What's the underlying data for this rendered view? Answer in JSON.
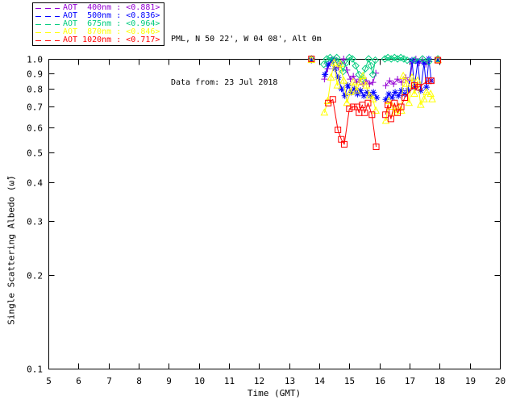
{
  "page": {
    "background": "#FFFFFF"
  },
  "header": {
    "station_line": "PML, N 50 22', W 04 08', Alt 0m",
    "date_line": "Data from: 23 Jul 2018"
  },
  "legend": {
    "entries": [
      {
        "id": "400nm",
        "label": "AOT  400nm : <0.881>",
        "mean": 0.881,
        "color": "#9400D3"
      },
      {
        "id": "500nm",
        "label": "AOT  500nm : <0.836>",
        "mean": 0.836,
        "color": "#0000FF"
      },
      {
        "id": "675nm",
        "label": "AOT  675nm : <0.964>",
        "mean": 0.964,
        "color": "#00CC7E"
      },
      {
        "id": "870nm",
        "label": "AOT  870nm : <0.846>",
        "mean": 0.846,
        "color": "#FFFF00"
      },
      {
        "id": "1020nm",
        "label": "AOT 1020nm : <0.717>",
        "mean": 0.717,
        "color": "#FF0000"
      }
    ]
  },
  "chart_data": {
    "type": "line",
    "title": "",
    "xlabel": "Time (GMT)",
    "ylabel": "Single Scattering Albedo (ω̃)",
    "xlim": [
      5,
      20
    ],
    "ylim": [
      0.1,
      1.0
    ],
    "yscale": "log",
    "grid": false,
    "legend_position": "top-left",
    "xticks": [
      5,
      6,
      7,
      8,
      9,
      10,
      11,
      12,
      13,
      14,
      15,
      16,
      17,
      18,
      19,
      20
    ],
    "yticks": [
      0.1,
      0.2,
      0.3,
      0.4,
      0.5,
      0.6,
      0.7,
      0.8,
      0.9,
      1.0
    ],
    "series": [
      {
        "name": "AOT 400nm",
        "wavelength": "400nm",
        "mean": 0.881,
        "color": "#9400D3",
        "marker": "plus",
        "segments": [
          [
            [
              13.74,
              1.0
            ]
          ],
          [
            [
              14.17,
              0.86
            ],
            [
              14.28,
              0.93
            ],
            [
              14.41,
              0.99
            ],
            [
              14.52,
              1.0
            ],
            [
              14.63,
              0.94
            ],
            [
              14.72,
              0.97
            ],
            [
              14.81,
              1.0
            ],
            [
              14.92,
              0.92
            ],
            [
              15.03,
              0.86
            ],
            [
              15.13,
              0.88
            ],
            [
              15.24,
              0.84
            ],
            [
              15.35,
              0.86
            ],
            [
              15.45,
              0.83
            ],
            [
              15.56,
              0.85
            ],
            [
              15.67,
              0.83
            ],
            [
              15.78,
              0.84
            ],
            [
              15.88,
              0.9
            ]
          ],
          [
            [
              16.21,
              0.82
            ],
            [
              16.34,
              0.85
            ],
            [
              16.47,
              0.83
            ],
            [
              16.6,
              0.86
            ],
            [
              16.73,
              0.84
            ],
            [
              16.87,
              0.87
            ],
            [
              17.0,
              0.85
            ],
            [
              17.1,
              0.97
            ],
            [
              17.21,
              1.0
            ],
            [
              17.32,
              0.97
            ],
            [
              17.43,
              0.99
            ],
            [
              17.54,
              0.96
            ],
            [
              17.64,
              0.98
            ]
          ],
          [
            [
              17.94,
              1.0
            ]
          ]
        ]
      },
      {
        "name": "AOT 500nm",
        "wavelength": "500nm",
        "mean": 0.836,
        "color": "#0000FF",
        "marker": "asterisk",
        "segments": [
          [
            [
              13.74,
              0.99
            ]
          ],
          [
            [
              14.19,
              0.89
            ],
            [
              14.3,
              0.96
            ],
            [
              14.41,
              0.99
            ],
            [
              14.52,
              0.93
            ],
            [
              14.63,
              0.87
            ],
            [
              14.74,
              0.8
            ],
            [
              14.85,
              0.76
            ],
            [
              14.95,
              0.82
            ],
            [
              15.06,
              0.78
            ],
            [
              15.16,
              0.8
            ],
            [
              15.27,
              0.77
            ],
            [
              15.37,
              0.79
            ],
            [
              15.48,
              0.76
            ],
            [
              15.59,
              0.78
            ],
            [
              15.7,
              0.76
            ],
            [
              15.8,
              0.78
            ],
            [
              15.91,
              0.75
            ]
          ],
          [
            [
              16.21,
              0.74
            ],
            [
              16.31,
              0.77
            ],
            [
              16.42,
              0.75
            ],
            [
              16.52,
              0.78
            ],
            [
              16.63,
              0.76
            ],
            [
              16.73,
              0.79
            ],
            [
              16.84,
              0.77
            ],
            [
              16.95,
              0.79
            ],
            [
              17.08,
              0.99
            ],
            [
              17.16,
              0.81
            ],
            [
              17.27,
              0.98
            ],
            [
              17.37,
              0.79
            ],
            [
              17.48,
              0.97
            ],
            [
              17.56,
              0.81
            ],
            [
              17.64,
              1.0
            ],
            [
              17.72,
              0.85
            ]
          ],
          [
            [
              17.94,
              0.99
            ]
          ]
        ]
      },
      {
        "name": "AOT 675nm",
        "wavelength": "675nm",
        "mean": 0.964,
        "color": "#00CC7E",
        "marker": "diamond",
        "segments": [
          [
            [
              13.74,
              1.0
            ]
          ],
          [
            [
              14.15,
              0.96
            ],
            [
              14.25,
              1.0
            ],
            [
              14.36,
              1.01
            ],
            [
              14.47,
              0.99
            ],
            [
              14.58,
              1.01
            ],
            [
              14.68,
              0.97
            ],
            [
              14.79,
              0.91
            ],
            [
              14.89,
              0.97
            ],
            [
              15.0,
              1.01
            ],
            [
              15.1,
              1.0
            ],
            [
              15.21,
              0.95
            ],
            [
              15.32,
              0.89
            ],
            [
              15.43,
              0.86
            ],
            [
              15.53,
              0.93
            ],
            [
              15.64,
              1.0
            ],
            [
              15.72,
              0.95
            ],
            [
              15.78,
              0.89
            ],
            [
              15.86,
              0.99
            ]
          ],
          [
            [
              16.18,
              1.0
            ],
            [
              16.28,
              1.01
            ],
            [
              16.39,
              1.0
            ],
            [
              16.5,
              1.01
            ],
            [
              16.6,
              1.0
            ],
            [
              16.71,
              1.01
            ],
            [
              16.81,
              1.0
            ],
            [
              16.92,
              0.99
            ]
          ],
          [
            [
              17.16,
              0.99
            ],
            [
              17.43,
              1.0
            ],
            [
              17.64,
              0.98
            ]
          ],
          [
            [
              17.94,
              1.0
            ]
          ]
        ]
      },
      {
        "name": "AOT 870nm",
        "wavelength": "870nm",
        "mean": 0.846,
        "color": "#FFFF00",
        "marker": "triangle",
        "segments": [
          [
            [
              13.74,
              0.99
            ]
          ],
          [
            [
              14.17,
              0.67
            ],
            [
              14.28,
              0.73
            ],
            [
              14.39,
              0.87
            ],
            [
              14.49,
              0.97
            ],
            [
              14.6,
              0.82
            ],
            [
              14.7,
              0.96
            ],
            [
              14.81,
              0.85
            ],
            [
              14.92,
              0.72
            ],
            [
              15.03,
              0.78
            ],
            [
              15.13,
              0.84
            ],
            [
              15.24,
              0.79
            ],
            [
              15.35,
              0.84
            ],
            [
              15.45,
              0.88
            ],
            [
              15.56,
              0.82
            ],
            [
              15.67,
              0.76
            ],
            [
              15.78,
              0.74
            ],
            [
              15.88,
              0.68
            ]
          ],
          [
            [
              16.21,
              0.63
            ],
            [
              16.31,
              0.73
            ],
            [
              16.42,
              0.7
            ],
            [
              16.52,
              0.67
            ],
            [
              16.63,
              0.7
            ],
            [
              16.73,
              0.68
            ],
            [
              16.79,
              0.88
            ],
            [
              16.9,
              0.83
            ],
            [
              16.98,
              0.72
            ],
            [
              17.08,
              0.87
            ],
            [
              17.16,
              0.77
            ],
            [
              17.27,
              0.85
            ],
            [
              17.37,
              0.71
            ],
            [
              17.48,
              0.74
            ],
            [
              17.56,
              0.78
            ],
            [
              17.7,
              0.77
            ],
            [
              17.75,
              0.74
            ]
          ],
          [
            [
              17.94,
              0.99
            ]
          ]
        ]
      },
      {
        "name": "AOT 1020nm",
        "wavelength": "1020nm",
        "mean": 0.717,
        "color": "#FF0000",
        "marker": "square",
        "segments": [
          [
            [
              13.74,
              1.0
            ]
          ],
          [
            [
              14.3,
              0.72
            ],
            [
              14.45,
              0.74
            ],
            [
              14.62,
              0.59
            ],
            [
              14.73,
              0.55
            ],
            [
              14.83,
              0.53
            ],
            [
              15.0,
              0.69
            ],
            [
              15.13,
              0.7
            ],
            [
              15.26,
              0.7
            ],
            [
              15.32,
              0.67
            ],
            [
              15.43,
              0.71
            ],
            [
              15.51,
              0.67
            ],
            [
              15.62,
              0.72
            ],
            [
              15.75,
              0.66
            ],
            [
              15.89,
              0.52
            ]
          ],
          [
            [
              16.2,
              0.66
            ],
            [
              16.28,
              0.71
            ],
            [
              16.38,
              0.64
            ],
            [
              16.5,
              0.72
            ],
            [
              16.6,
              0.67
            ],
            [
              16.72,
              0.7
            ],
            [
              16.84,
              0.75
            ],
            [
              17.16,
              0.82
            ],
            [
              17.3,
              0.81
            ],
            [
              17.62,
              0.85
            ],
            [
              17.72,
              0.85
            ]
          ],
          [
            [
              17.94,
              0.99
            ]
          ]
        ]
      }
    ]
  }
}
